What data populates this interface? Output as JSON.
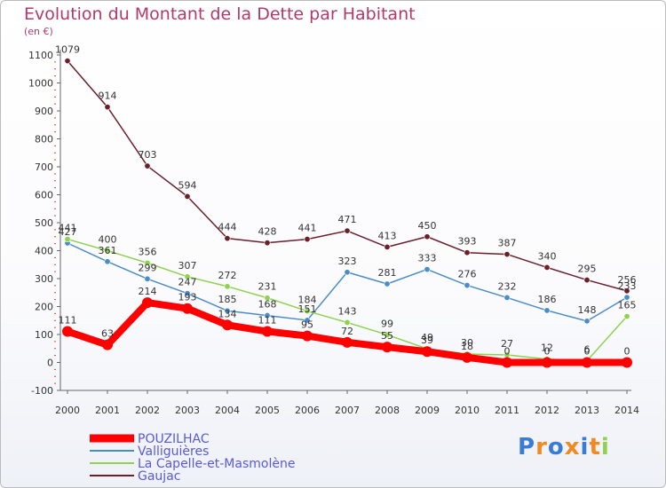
{
  "chart_data": {
    "type": "line",
    "title": "Evolution du Montant de la Dette par Habitant",
    "unit": "(en €)",
    "x": [
      "2000",
      "2001",
      "2002",
      "2003",
      "2004",
      "2005",
      "2006",
      "2007",
      "2008",
      "2009",
      "2010",
      "2011",
      "2012",
      "2013",
      "2014"
    ],
    "ylim": [
      -100,
      1100
    ],
    "yticks": [
      -100,
      0,
      100,
      200,
      300,
      400,
      500,
      600,
      700,
      800,
      900,
      1000,
      1100
    ],
    "grid": false,
    "legend": "bottom-left",
    "series": [
      {
        "name": "POUZILHAC",
        "color": "#ff0000",
        "values": [
          111,
          63,
          214,
          193,
          134,
          111,
          95,
          72,
          55,
          39,
          18,
          0,
          0,
          0,
          0
        ]
      },
      {
        "name": "Valliguières",
        "color": "#4a8cc9",
        "values": [
          427,
          361,
          299,
          247,
          185,
          168,
          151,
          323,
          281,
          333,
          276,
          232,
          186,
          148,
          233
        ]
      },
      {
        "name": "La Capelle-et-Masmolène",
        "color": "#8ed24e",
        "values": [
          441,
          400,
          356,
          307,
          272,
          231,
          184,
          143,
          99,
          49,
          30,
          27,
          12,
          6,
          165
        ]
      },
      {
        "name": "Gaujac",
        "color": "#6b1f2a",
        "values": [
          1079,
          914,
          703,
          594,
          444,
          428,
          441,
          471,
          413,
          450,
          393,
          387,
          340,
          295,
          256
        ]
      }
    ]
  },
  "logo": {
    "text": "Proxiti",
    "colors": [
      "#3a7bd5",
      "#f08a24",
      "#3a7bd5",
      "#f08a24",
      "#3a7bd5",
      "#f08a24",
      "#8ed24e"
    ]
  }
}
